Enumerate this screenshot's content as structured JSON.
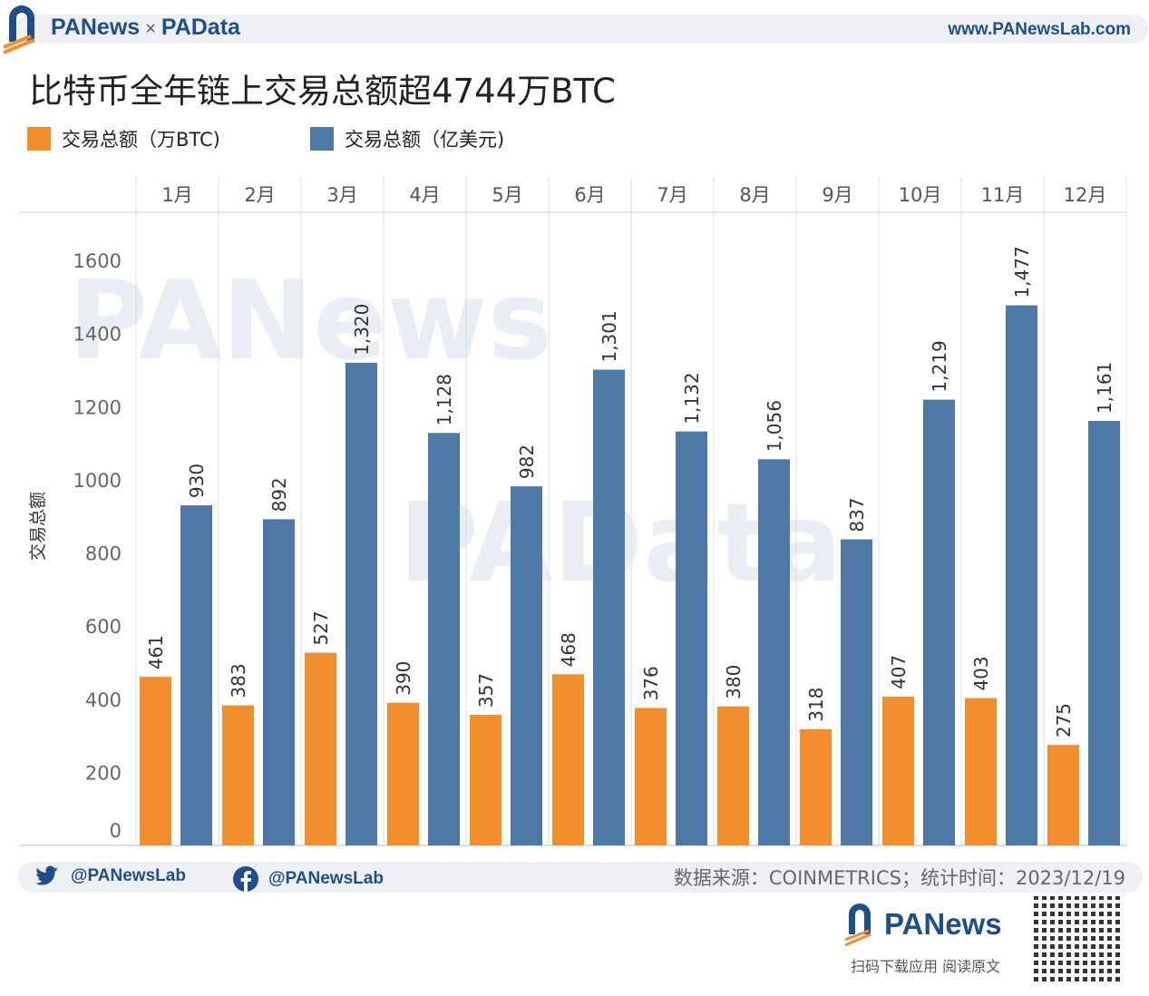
{
  "header": {
    "brand_left": "PANews",
    "brand_sep": "×",
    "brand_right": "PAData",
    "site": "www.PANewsLab.com"
  },
  "watermarks": [
    "PANews",
    "PAData"
  ],
  "chart_data": {
    "type": "bar",
    "title": "比特币全年链上交易总额超4744万BTC",
    "ylabel": "交易总额",
    "xlabel": "",
    "categories": [
      "1月",
      "2月",
      "3月",
      "4月",
      "5月",
      "6月",
      "7月",
      "8月",
      "9月",
      "10月",
      "11月",
      "12月"
    ],
    "series": [
      {
        "name": "交易总额（万BTC)",
        "color": "#f28e2b",
        "values": [
          461,
          383,
          527,
          390,
          357,
          468,
          376,
          380,
          318,
          407,
          403,
          275
        ],
        "labels": [
          "461",
          "383",
          "527",
          "390",
          "357",
          "468",
          "376",
          "380",
          "318",
          "407",
          "403",
          "275"
        ]
      },
      {
        "name": "交易总额（亿美元)",
        "color": "#4e79a7",
        "values": [
          930,
          892,
          1320,
          1128,
          982,
          1301,
          1132,
          1056,
          837,
          1219,
          1477,
          1161
        ],
        "labels": [
          "930",
          "892",
          "1,320",
          "1,128",
          "982",
          "1,301",
          "1,132",
          "1,056",
          "837",
          "1,219",
          "1,477",
          "1,161"
        ]
      }
    ],
    "ylim": [
      0,
      1600
    ],
    "yticks": [
      "0",
      "200",
      "400",
      "600",
      "800",
      "1000",
      "1200",
      "1400",
      "1600"
    ],
    "grid": "vertical column dividers",
    "legend": "top-left"
  },
  "footer": {
    "twitter": "@PANewsLab",
    "facebook": "@PANewsLab",
    "source": "数据来源：COINMETRICS；统计时间：2023/12/19",
    "logo": "PANews",
    "tagline": "扫码下载应用 阅读原文"
  }
}
